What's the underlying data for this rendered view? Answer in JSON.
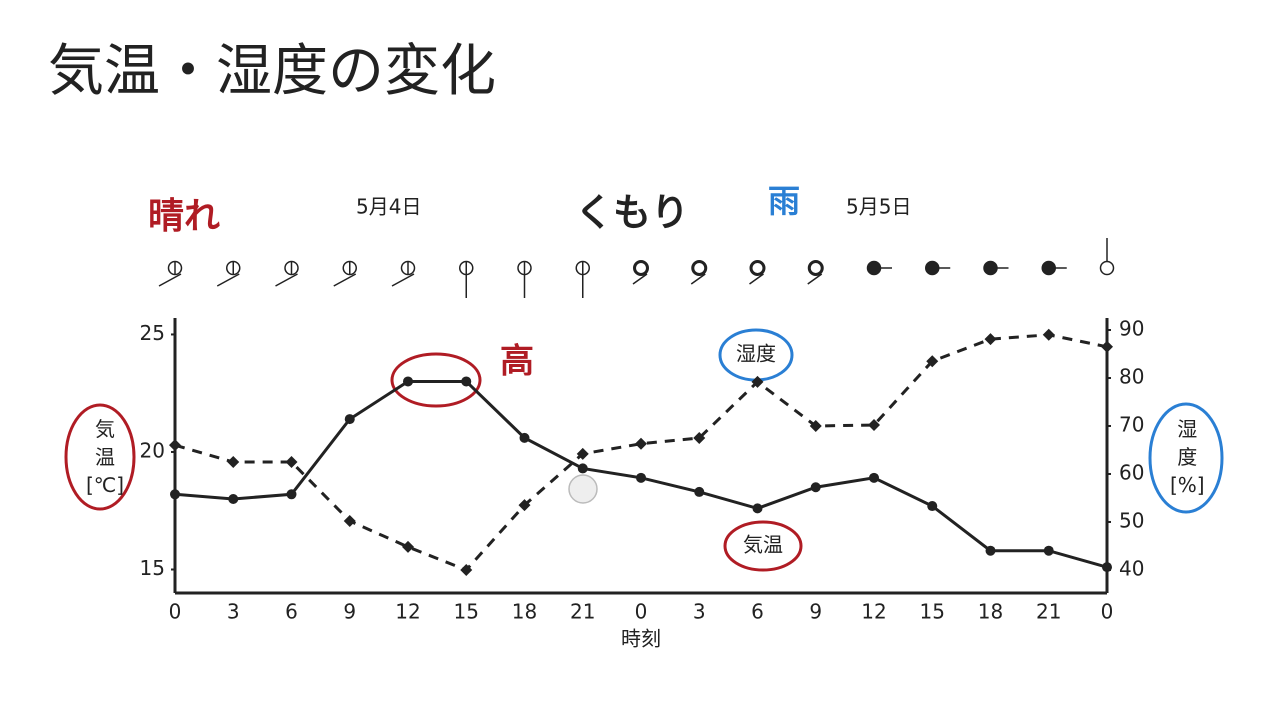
{
  "chart_data": {
    "type": "line",
    "title": "気温・湿度の変化",
    "annotations": [
      "晴れ",
      "5月4日",
      "くもり",
      "雨",
      "5月5日",
      "高"
    ],
    "xlabel": "時刻",
    "ylabel": "気温[℃]",
    "y2label": "湿度[%]",
    "categories": [
      "0",
      "3",
      "6",
      "9",
      "12",
      "15",
      "18",
      "21",
      "0",
      "3",
      "6",
      "9",
      "12",
      "15",
      "18",
      "21",
      "0"
    ],
    "series": [
      {
        "name": "気温",
        "color": "#222222",
        "values": [
          18.2,
          18.0,
          18.2,
          21.4,
          23.0,
          23.0,
          20.6,
          19.3,
          18.9,
          18.3,
          17.6,
          18.5,
          18.9,
          17.7,
          15.8,
          15.8,
          15.1
        ]
      },
      {
        "name": "湿度",
        "color": "#222222",
        "axis": "y2",
        "values": [
          66.0,
          62.5,
          62.5,
          50.2,
          44.8,
          40.0,
          53.5,
          64.2,
          66.3,
          67.5,
          79.2,
          70.0,
          70.2,
          83.5,
          88.1,
          89.0,
          86.5
        ]
      }
    ],
    "ylim": [
      14,
      25.7
    ],
    "yticks": [
      15,
      20,
      25
    ],
    "y2lim": [
      35.2,
      92.5
    ],
    "y2ticks": [
      40,
      50,
      60,
      70,
      80,
      90
    ],
    "grid": false
  }
}
